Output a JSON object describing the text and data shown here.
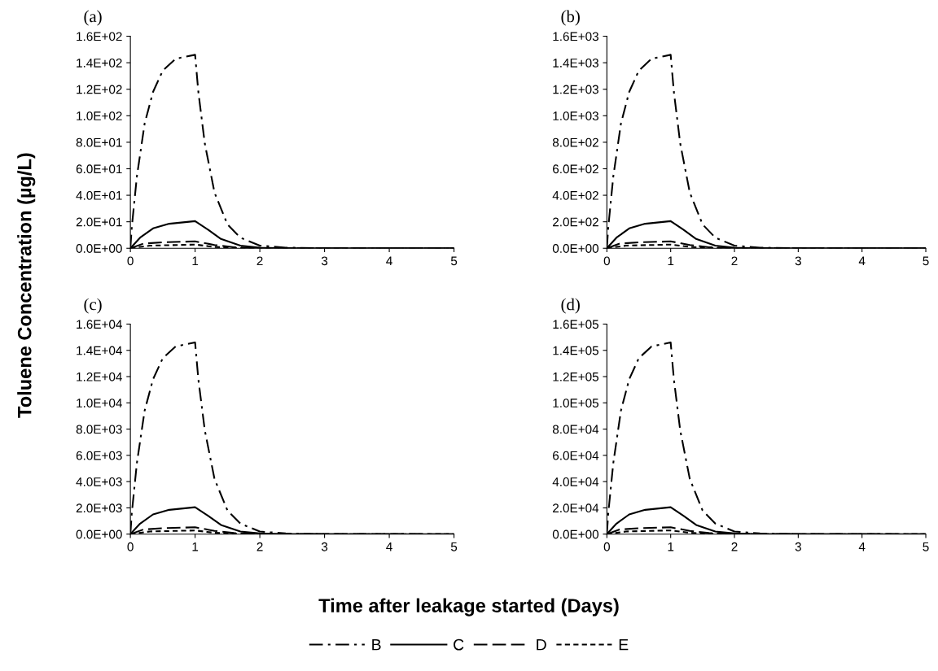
{
  "chart_data": [
    {
      "type": "line",
      "title": "(a)",
      "ylabel": "Toluene Concentration (µg/L)",
      "xlabel": "Time after leakage started (Days)",
      "legend": "bottom",
      "grid": false,
      "xlim": [
        0,
        5
      ],
      "xticks": [
        0,
        1,
        2,
        3,
        4,
        5
      ],
      "ylim": [
        0,
        160
      ],
      "yticks": [
        {
          "value": 0,
          "label": "0.0E+00"
        },
        {
          "value": 20,
          "label": "2.0E+01"
        },
        {
          "value": 40,
          "label": "4.0E+01"
        },
        {
          "value": 60,
          "label": "6.0E+01"
        },
        {
          "value": 80,
          "label": "8.0E+01"
        },
        {
          "value": 100,
          "label": "1.0E+02"
        },
        {
          "value": 120,
          "label": "1.2E+02"
        },
        {
          "value": 140,
          "label": "1.4E+02"
        },
        {
          "value": 160,
          "label": "1.6E+02"
        }
      ],
      "series": [
        {
          "name": "B",
          "color": "#000000",
          "line_style": "dashdot",
          "x": [
            0,
            0.02,
            0.1,
            0.22,
            0.35,
            0.5,
            0.7,
            1.0,
            1.05,
            1.15,
            1.3,
            1.5,
            1.7,
            2.0,
            2.4,
            3,
            5
          ],
          "values": [
            0,
            15,
            54,
            94,
            118,
            134,
            143,
            146,
            118,
            79,
            42,
            18,
            8,
            2,
            0.5,
            0,
            0
          ]
        },
        {
          "name": "C",
          "color": "#000000",
          "line_style": "solid",
          "x": [
            0,
            0.15,
            0.35,
            0.6,
            1.0,
            1.2,
            1.4,
            1.7,
            2.0,
            2.4,
            5
          ],
          "values": [
            0,
            8,
            15,
            18.5,
            20.5,
            14,
            7,
            2,
            0.5,
            0,
            0
          ]
        },
        {
          "name": "D",
          "color": "#000000",
          "line_style": "dashed",
          "x": [
            0,
            0.2,
            0.5,
            1.0,
            1.3,
            1.6,
            2.0,
            5
          ],
          "values": [
            0,
            3.5,
            4.5,
            5.2,
            2.5,
            0.8,
            0.1,
            0
          ]
        },
        {
          "name": "E",
          "color": "#000000",
          "line_style": "dotted",
          "x": [
            0,
            0.3,
            1.0,
            1.3,
            1.7,
            2.0,
            5
          ],
          "values": [
            0,
            2,
            2.8,
            1,
            0.2,
            0,
            0
          ]
        }
      ]
    },
    {
      "type": "line",
      "title": "(b)",
      "legend": false,
      "grid": false,
      "xlim": [
        0,
        5
      ],
      "xticks": [
        0,
        1,
        2,
        3,
        4,
        5
      ],
      "ylim": [
        0,
        1600
      ],
      "yticks": [
        {
          "value": 0,
          "label": "0.0E+00"
        },
        {
          "value": 200,
          "label": "2.0E+02"
        },
        {
          "value": 400,
          "label": "4.0E+02"
        },
        {
          "value": 600,
          "label": "6.0E+02"
        },
        {
          "value": 800,
          "label": "8.0E+02"
        },
        {
          "value": 1000,
          "label": "1.0E+03"
        },
        {
          "value": 1200,
          "label": "1.2E+03"
        },
        {
          "value": 1400,
          "label": "1.4E+03"
        },
        {
          "value": 1600,
          "label": "1.6E+03"
        }
      ],
      "series": [
        {
          "color": "#000000",
          "line_style": "dashdot",
          "x": [
            0,
            0.02,
            0.1,
            0.22,
            0.35,
            0.5,
            0.7,
            1.0,
            1.05,
            1.15,
            1.3,
            1.5,
            1.7,
            2.0,
            2.4,
            3,
            5
          ],
          "values": [
            0,
            150,
            540,
            940,
            1180,
            1340,
            1430,
            1460,
            1180,
            790,
            420,
            180,
            80,
            20,
            5,
            0,
            0
          ]
        },
        {
          "color": "#000000",
          "line_style": "solid",
          "x": [
            0,
            0.15,
            0.35,
            0.6,
            1.0,
            1.2,
            1.4,
            1.7,
            2.0,
            2.4,
            5
          ],
          "values": [
            0,
            80,
            150,
            185,
            205,
            140,
            70,
            20,
            5,
            0,
            0
          ]
        },
        {
          "color": "#000000",
          "line_style": "dashed",
          "x": [
            0,
            0.2,
            0.5,
            1.0,
            1.3,
            1.6,
            2.0,
            5
          ],
          "values": [
            0,
            35,
            45,
            52,
            25,
            8,
            1,
            0
          ]
        },
        {
          "color": "#000000",
          "line_style": "dotted",
          "x": [
            0,
            0.3,
            1.0,
            1.3,
            1.7,
            2.0,
            5
          ],
          "values": [
            0,
            20,
            28,
            10,
            2,
            0,
            0
          ]
        }
      ]
    },
    {
      "type": "line",
      "title": "(c)",
      "legend": false,
      "grid": false,
      "xlim": [
        0,
        5
      ],
      "xticks": [
        0,
        1,
        2,
        3,
        4,
        5
      ],
      "ylim": [
        0,
        16000
      ],
      "yticks": [
        {
          "value": 0,
          "label": "0.0E+00"
        },
        {
          "value": 2000,
          "label": "2.0E+03"
        },
        {
          "value": 4000,
          "label": "4.0E+03"
        },
        {
          "value": 6000,
          "label": "6.0E+03"
        },
        {
          "value": 8000,
          "label": "8.0E+03"
        },
        {
          "value": 10000,
          "label": "1.0E+04"
        },
        {
          "value": 12000,
          "label": "1.2E+04"
        },
        {
          "value": 14000,
          "label": "1.4E+04"
        },
        {
          "value": 16000,
          "label": "1.6E+04"
        }
      ],
      "series": [
        {
          "color": "#000000",
          "line_style": "dashdot",
          "x": [
            0,
            0.02,
            0.1,
            0.22,
            0.35,
            0.5,
            0.7,
            1.0,
            1.05,
            1.15,
            1.3,
            1.5,
            1.7,
            2.0,
            2.4,
            3,
            5
          ],
          "values": [
            0,
            1500,
            5400,
            9400,
            11800,
            13400,
            14300,
            14600,
            11800,
            7900,
            4200,
            1800,
            800,
            200,
            50,
            0,
            0
          ]
        },
        {
          "color": "#000000",
          "line_style": "solid",
          "x": [
            0,
            0.15,
            0.35,
            0.6,
            1.0,
            1.2,
            1.4,
            1.7,
            2.0,
            2.4,
            5
          ],
          "values": [
            0,
            800,
            1500,
            1850,
            2050,
            1400,
            700,
            200,
            50,
            0,
            0
          ]
        },
        {
          "color": "#000000",
          "line_style": "dashed",
          "x": [
            0,
            0.2,
            0.5,
            1.0,
            1.3,
            1.6,
            2.0,
            5
          ],
          "values": [
            0,
            350,
            450,
            520,
            250,
            80,
            10,
            0
          ]
        },
        {
          "color": "#000000",
          "line_style": "dotted",
          "x": [
            0,
            0.3,
            1.0,
            1.3,
            1.7,
            2.0,
            5
          ],
          "values": [
            0,
            200,
            280,
            100,
            20,
            0,
            0
          ]
        }
      ]
    },
    {
      "type": "line",
      "title": "(d)",
      "legend": false,
      "grid": false,
      "xlim": [
        0,
        5
      ],
      "xticks": [
        0,
        1,
        2,
        3,
        4,
        5
      ],
      "ylim": [
        0,
        160000
      ],
      "yticks": [
        {
          "value": 0,
          "label": "0.0E+00"
        },
        {
          "value": 20000,
          "label": "2.0E+04"
        },
        {
          "value": 40000,
          "label": "4.0E+04"
        },
        {
          "value": 60000,
          "label": "6.0E+04"
        },
        {
          "value": 80000,
          "label": "8.0E+04"
        },
        {
          "value": 100000,
          "label": "1.0E+05"
        },
        {
          "value": 120000,
          "label": "1.2E+05"
        },
        {
          "value": 140000,
          "label": "1.4E+05"
        },
        {
          "value": 160000,
          "label": "1.6E+05"
        }
      ],
      "series": [
        {
          "color": "#000000",
          "line_style": "dashdot",
          "x": [
            0,
            0.02,
            0.1,
            0.22,
            0.35,
            0.5,
            0.7,
            1.0,
            1.05,
            1.15,
            1.3,
            1.5,
            1.7,
            2.0,
            2.4,
            3,
            5
          ],
          "values": [
            0,
            15000,
            54000,
            94000,
            118000,
            134000,
            143000,
            146000,
            118000,
            79000,
            42000,
            18000,
            8000,
            2000,
            500,
            0,
            0
          ]
        },
        {
          "color": "#000000",
          "line_style": "solid",
          "x": [
            0,
            0.15,
            0.35,
            0.6,
            1.0,
            1.2,
            1.4,
            1.7,
            2.0,
            2.4,
            5
          ],
          "values": [
            0,
            8000,
            15000,
            18500,
            20500,
            14000,
            7000,
            2000,
            500,
            0,
            0
          ]
        },
        {
          "color": "#000000",
          "line_style": "dashed",
          "x": [
            0,
            0.2,
            0.5,
            1.0,
            1.3,
            1.6,
            2.0,
            5
          ],
          "values": [
            0,
            3500,
            4500,
            5200,
            2500,
            800,
            100,
            0
          ]
        },
        {
          "color": "#000000",
          "line_style": "dotted",
          "x": [
            0,
            0.3,
            1.0,
            1.3,
            1.7,
            2.0,
            5
          ],
          "values": [
            0,
            2000,
            2800,
            1000,
            200,
            0,
            0
          ]
        }
      ]
    }
  ]
}
